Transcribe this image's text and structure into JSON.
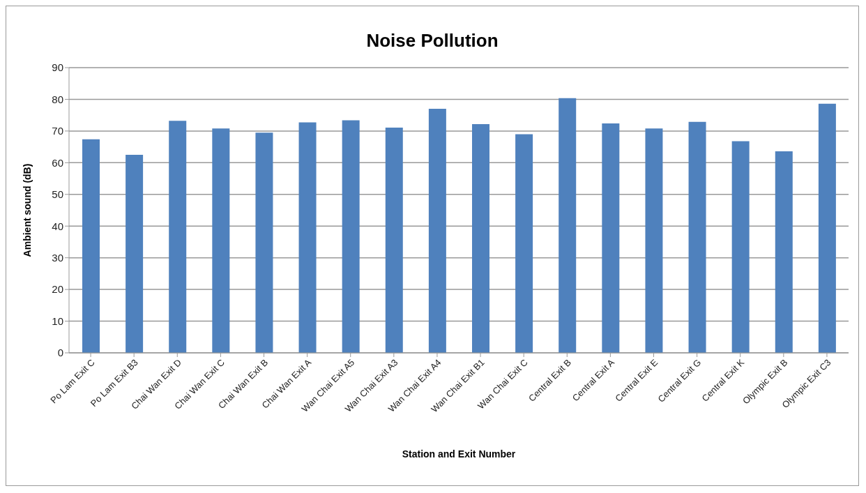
{
  "chart_data": {
    "type": "bar",
    "title": "Noise Pollution",
    "xlabel": "Station and Exit Number",
    "ylabel": "Ambient sound (dB)",
    "categories": [
      "Po Lam Exit C",
      "Po Lam Exit B3",
      "Chai Wan Exit D",
      "Chai Wan Exit C",
      "Chai Wan Exit B",
      "Chai Wan Exit A",
      "Wan Chai Exit A5",
      "Wan Chai Exit A3",
      "Wan Chai Exit A4",
      "Wan Chai Exit B1",
      "Wan Chai Exit C",
      "Central Exit B",
      "Central Exit A",
      "Central Exit E",
      "Central Exit G",
      "Central Exit K",
      "Olympic Exit B",
      "Olympic Exit C3"
    ],
    "values": [
      67.4,
      62.5,
      73.2,
      70.8,
      69.5,
      72.7,
      73.4,
      71.1,
      77.0,
      72.2,
      69.0,
      80.4,
      72.4,
      70.8,
      72.9,
      66.8,
      63.6,
      78.6
    ],
    "color": "#4f81bd",
    "ylim": [
      0,
      90
    ],
    "yticks": [
      0,
      10,
      20,
      30,
      40,
      50,
      60,
      70,
      80,
      90
    ],
    "grid": "y",
    "legend": false
  }
}
